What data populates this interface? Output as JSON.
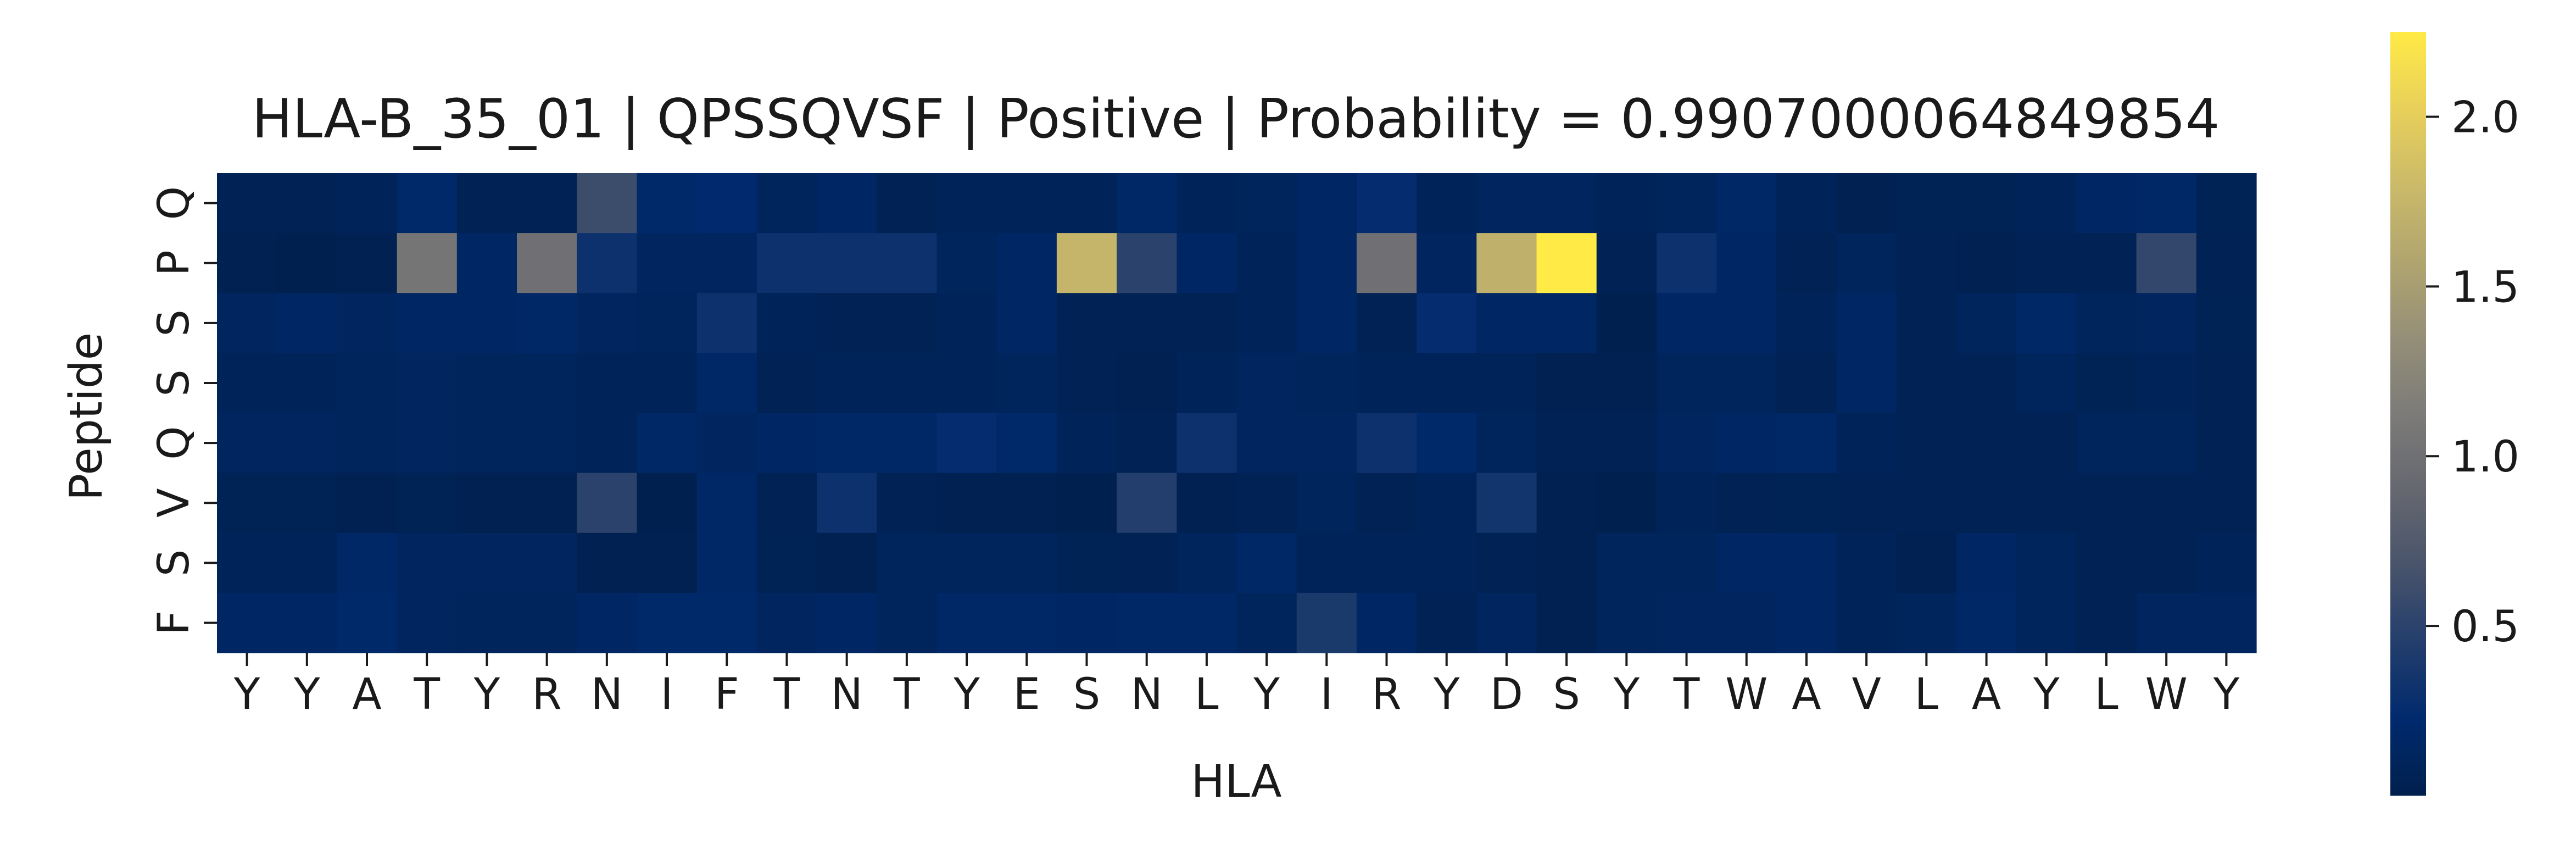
{
  "chart_data": {
    "type": "heatmap",
    "title": "HLA-B_35_01 | QPSSQVSF | Positive | Probability = 0.9907000064849854",
    "xlabel": "HLA",
    "ylabel": "Peptide",
    "x_labels": [
      "Y",
      "Y",
      "A",
      "T",
      "Y",
      "R",
      "N",
      "I",
      "F",
      "T",
      "N",
      "T",
      "Y",
      "E",
      "S",
      "N",
      "L",
      "Y",
      "I",
      "R",
      "Y",
      "D",
      "S",
      "Y",
      "T",
      "W",
      "A",
      "V",
      "L",
      "A",
      "Y",
      "L",
      "W",
      "Y"
    ],
    "y_labels": [
      "Q",
      "P",
      "S",
      "S",
      "Q",
      "V",
      "S",
      "F"
    ],
    "values": [
      [
        0.05,
        0.05,
        0.08,
        0.2,
        0.05,
        0.05,
        0.6,
        0.2,
        0.22,
        0.1,
        0.15,
        0.05,
        0.08,
        0.08,
        0.08,
        0.18,
        0.08,
        0.1,
        0.15,
        0.25,
        0.08,
        0.12,
        0.12,
        0.08,
        0.1,
        0.18,
        0.08,
        0.03,
        0.06,
        0.06,
        0.08,
        0.15,
        0.18,
        0.06
      ],
      [
        0.03,
        0.02,
        0.03,
        1.05,
        0.15,
        1.0,
        0.3,
        0.12,
        0.12,
        0.3,
        0.3,
        0.3,
        0.1,
        0.15,
        1.75,
        0.5,
        0.15,
        0.08,
        0.15,
        1.0,
        0.12,
        1.7,
        2.25,
        0.05,
        0.3,
        0.15,
        0.05,
        0.1,
        0.05,
        0.03,
        0.05,
        0.05,
        0.55,
        0.05
      ],
      [
        0.12,
        0.15,
        0.12,
        0.15,
        0.15,
        0.18,
        0.12,
        0.1,
        0.3,
        0.08,
        0.05,
        0.05,
        0.08,
        0.15,
        0.05,
        0.05,
        0.05,
        0.08,
        0.15,
        0.05,
        0.25,
        0.15,
        0.15,
        0.02,
        0.15,
        0.15,
        0.08,
        0.15,
        0.05,
        0.1,
        0.18,
        0.1,
        0.12,
        0.06
      ],
      [
        0.08,
        0.08,
        0.1,
        0.12,
        0.1,
        0.1,
        0.08,
        0.08,
        0.18,
        0.05,
        0.08,
        0.08,
        0.08,
        0.1,
        0.05,
        0.03,
        0.08,
        0.12,
        0.1,
        0.08,
        0.08,
        0.08,
        0.03,
        0.03,
        0.1,
        0.1,
        0.05,
        0.15,
        0.05,
        0.05,
        0.1,
        0.06,
        0.08,
        0.05
      ],
      [
        0.12,
        0.12,
        0.1,
        0.12,
        0.1,
        0.1,
        0.08,
        0.18,
        0.12,
        0.15,
        0.18,
        0.18,
        0.25,
        0.2,
        0.08,
        0.05,
        0.3,
        0.12,
        0.12,
        0.3,
        0.2,
        0.1,
        0.05,
        0.05,
        0.12,
        0.15,
        0.18,
        0.08,
        0.05,
        0.05,
        0.05,
        0.1,
        0.1,
        0.05
      ],
      [
        0.06,
        0.06,
        0.03,
        0.06,
        0.03,
        0.03,
        0.5,
        0.02,
        0.18,
        0.05,
        0.3,
        0.05,
        0.03,
        0.03,
        0.02,
        0.45,
        0.03,
        0.05,
        0.1,
        0.05,
        0.08,
        0.35,
        0.03,
        0.02,
        0.08,
        0.05,
        0.06,
        0.05,
        0.05,
        0.05,
        0.05,
        0.05,
        0.05,
        0.05
      ],
      [
        0.08,
        0.08,
        0.18,
        0.12,
        0.12,
        0.12,
        0.03,
        0.03,
        0.18,
        0.06,
        0.03,
        0.1,
        0.1,
        0.1,
        0.06,
        0.05,
        0.1,
        0.18,
        0.08,
        0.08,
        0.08,
        0.05,
        0.03,
        0.1,
        0.1,
        0.15,
        0.15,
        0.08,
        0.03,
        0.15,
        0.1,
        0.05,
        0.05,
        0.08
      ],
      [
        0.15,
        0.15,
        0.2,
        0.12,
        0.1,
        0.1,
        0.15,
        0.2,
        0.2,
        0.12,
        0.15,
        0.1,
        0.18,
        0.18,
        0.15,
        0.18,
        0.18,
        0.1,
        0.4,
        0.15,
        0.05,
        0.12,
        0.03,
        0.1,
        0.12,
        0.12,
        0.15,
        0.08,
        0.1,
        0.18,
        0.1,
        0.05,
        0.12,
        0.12
      ]
    ],
    "vmin": 0.0,
    "vmax": 2.25,
    "colormap": "cividis",
    "colorbar_ticks": [
      "0.5",
      "1.0",
      "1.5",
      "2.0"
    ],
    "colorbar_tick_values": [
      0.5,
      1.0,
      1.5,
      2.0
    ],
    "grid": false
  }
}
